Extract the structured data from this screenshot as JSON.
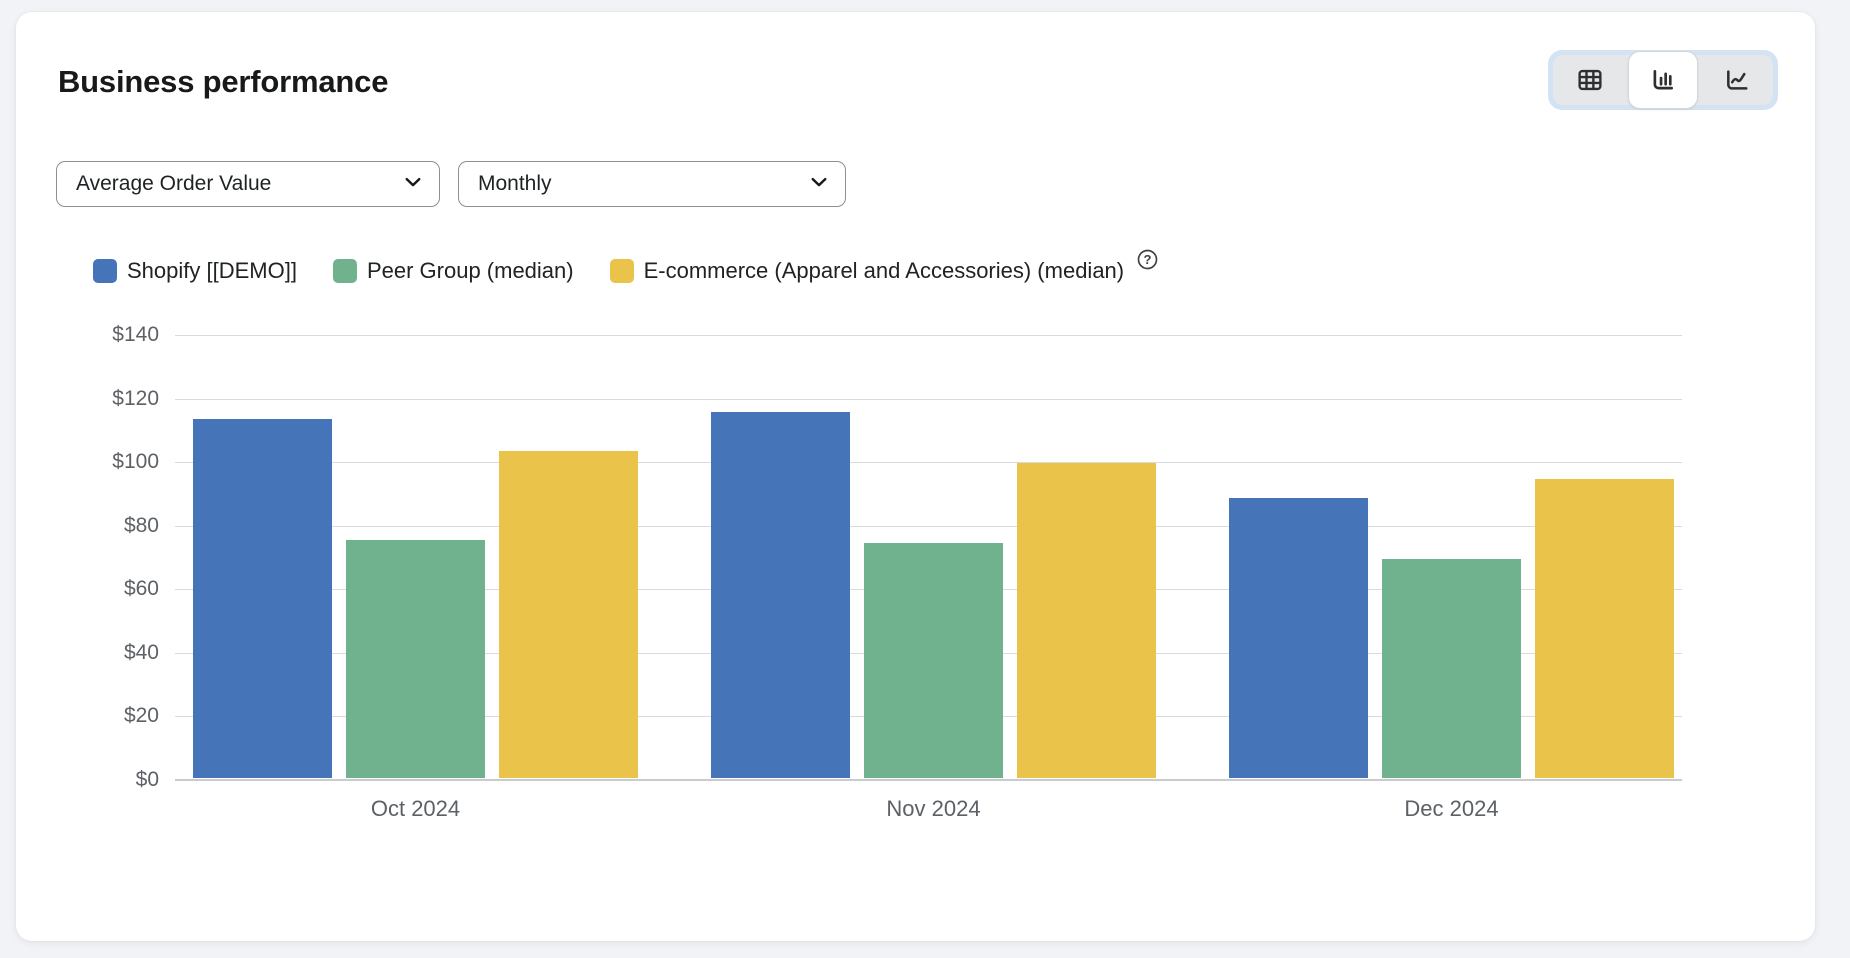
{
  "header": {
    "title": "Business performance"
  },
  "view_toggle": {
    "options": [
      {
        "name": "table-view",
        "icon": "table-icon",
        "selected": false
      },
      {
        "name": "bar-chart-view",
        "icon": "bar-chart-icon",
        "selected": true
      },
      {
        "name": "line-chart-view",
        "icon": "line-chart-icon",
        "selected": false
      }
    ]
  },
  "filters": {
    "metric": {
      "value": "Average Order Value"
    },
    "granularity": {
      "value": "Monthly"
    }
  },
  "legend": {
    "items": [
      {
        "label": "Shopify [[DEMO]]",
        "color": "#4674B9"
      },
      {
        "label": "Peer Group (median)",
        "color": "#6FB28D"
      },
      {
        "label": "E-commerce (Apparel and Accessories) (median)",
        "color": "#E9C34A"
      }
    ],
    "help_icon": "question-mark-icon"
  },
  "chart_data": {
    "type": "bar",
    "categories": [
      "Oct 2024",
      "Nov 2024",
      "Dec 2024"
    ],
    "series": [
      {
        "name": "Shopify [[DEMO]]",
        "color": "#4674B9",
        "values": [
          113,
          115,
          88
        ]
      },
      {
        "name": "Peer Group (median)",
        "color": "#6FB28D",
        "values": [
          75,
          74,
          69
        ]
      },
      {
        "name": "E-commerce (Apparel and Accessories) (median)",
        "color": "#E9C34A",
        "values": [
          103,
          99,
          94
        ]
      }
    ],
    "title": "",
    "xlabel": "",
    "ylabel": "",
    "ylim": [
      0,
      140
    ],
    "y_tick_step": 20,
    "y_ticks": [
      "$0",
      "$20",
      "$40",
      "$60",
      "$80",
      "$100",
      "$120",
      "$140"
    ],
    "currency_prefix": "$",
    "grid": true,
    "legend_position": "top"
  },
  "colors": {
    "grid": "#d9dbdd",
    "baseline": "#c9cccf",
    "axis_text": "#5d6166"
  }
}
